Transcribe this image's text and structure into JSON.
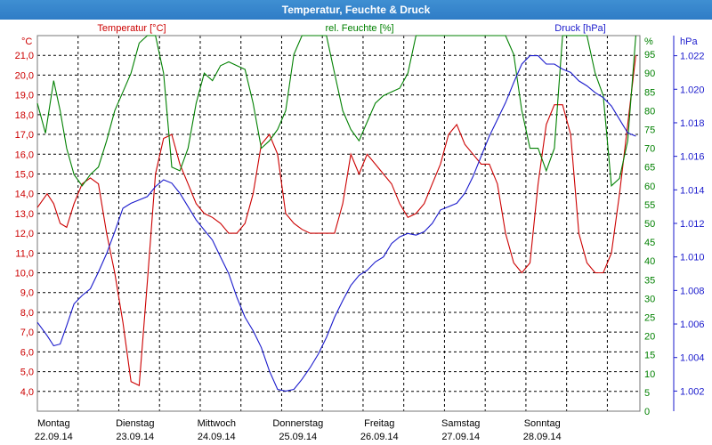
{
  "window": {
    "title": "Temperatur, Feuchte & Druck"
  },
  "chart_data": {
    "type": "line",
    "title": "Temperatur, Feuchte & Druck",
    "x_labels": [
      {
        "day": "Montag",
        "date": "22.09.14"
      },
      {
        "day": "Dienstag",
        "date": "23.09.14"
      },
      {
        "day": "Mittwoch",
        "date": "24.09.14"
      },
      {
        "day": "Donnerstag",
        "date": "25.09.14"
      },
      {
        "day": "Freitag",
        "date": "26.09.14"
      },
      {
        "day": "Samstag",
        "date": "27.09.14"
      },
      {
        "day": "Sonntag",
        "date": "28.09.14"
      }
    ],
    "x_range_days": [
      0,
      7.4
    ],
    "grid": true,
    "axes": {
      "temperature": {
        "label": "Temperatur [°C]",
        "unit": "°C",
        "color": "#cc0000",
        "ylim": [
          3,
          22
        ],
        "ticks": [
          "4,0",
          "5,0",
          "6,0",
          "7,0",
          "8,0",
          "9,0",
          "10,0",
          "11,0",
          "12,0",
          "13,0",
          "14,0",
          "15,0",
          "16,0",
          "17,0",
          "18,0",
          "19,0",
          "20,0",
          "21,0"
        ]
      },
      "humidity": {
        "label": "rel. Feuchte [%]",
        "unit": "%",
        "color": "#008000",
        "ylim": [
          0,
          100
        ],
        "ticks": [
          "0",
          "5",
          "10",
          "15",
          "20",
          "25",
          "30",
          "35",
          "40",
          "45",
          "50",
          "55",
          "60",
          "65",
          "70",
          "75",
          "80",
          "85",
          "90",
          "95"
        ]
      },
      "pressure": {
        "label": "Druck [hPa]",
        "unit": "hPa",
        "color": "#1a1acc",
        "ylim": [
          1000.8,
          1023.2
        ],
        "ticks": [
          "1.002",
          "1.004",
          "1.006",
          "1.008",
          "1.010",
          "1.012",
          "1.014",
          "1.016",
          "1.018",
          "1.020",
          "1.022"
        ]
      }
    },
    "series": [
      {
        "name": "Temperatur [°C]",
        "axis": "temperature",
        "color": "#cc0000",
        "x": [
          0,
          0.12,
          0.2,
          0.28,
          0.36,
          0.45,
          0.55,
          0.65,
          0.75,
          0.85,
          0.95,
          1.05,
          1.15,
          1.25,
          1.35,
          1.45,
          1.55,
          1.65,
          1.75,
          1.85,
          1.95,
          2.05,
          2.15,
          2.25,
          2.35,
          2.45,
          2.55,
          2.65,
          2.75,
          2.85,
          2.95,
          3.05,
          3.15,
          3.25,
          3.35,
          3.45,
          3.55,
          3.65,
          3.75,
          3.85,
          3.95,
          4.05,
          4.15,
          4.25,
          4.35,
          4.45,
          4.55,
          4.65,
          4.75,
          4.85,
          4.95,
          5.05,
          5.15,
          5.25,
          5.35,
          5.45,
          5.55,
          5.65,
          5.75,
          5.85,
          5.95,
          6.05,
          6.15,
          6.25,
          6.35,
          6.45,
          6.55,
          6.65,
          6.75,
          6.85,
          6.95,
          7.05,
          7.15,
          7.25,
          7.35
        ],
        "values": [
          13.3,
          14.0,
          13.5,
          12.5,
          12.3,
          13.5,
          14.5,
          14.8,
          14.5,
          12.0,
          10.0,
          7.5,
          4.5,
          4.3,
          9.5,
          15.0,
          16.8,
          17.0,
          15.5,
          14.5,
          13.5,
          13.0,
          12.8,
          12.5,
          12.0,
          12.0,
          12.5,
          14.0,
          16.5,
          17.0,
          16.0,
          13.0,
          12.5,
          12.2,
          12.0,
          12.0,
          12.0,
          12.0,
          13.5,
          16.0,
          15.0,
          16.0,
          15.5,
          15.0,
          14.5,
          13.5,
          12.8,
          13.0,
          13.5,
          14.5,
          15.5,
          17.0,
          17.5,
          16.5,
          16.0,
          15.5,
          15.5,
          14.5,
          12.0,
          10.5,
          10.0,
          10.5,
          14.5,
          17.5,
          18.5,
          18.5,
          17.0,
          12.0,
          10.5,
          10.0,
          10.0,
          11.0,
          14.0,
          17.5,
          21.0
        ]
      },
      {
        "name": "rel. Feuchte [%]",
        "axis": "humidity",
        "color": "#008000",
        "x": [
          0,
          0.1,
          0.2,
          0.28,
          0.36,
          0.45,
          0.55,
          0.65,
          0.75,
          0.85,
          0.95,
          1.05,
          1.15,
          1.25,
          1.35,
          1.45,
          1.55,
          1.65,
          1.75,
          1.85,
          1.95,
          2.05,
          2.15,
          2.25,
          2.35,
          2.45,
          2.55,
          2.65,
          2.75,
          2.85,
          2.95,
          3.05,
          3.15,
          3.25,
          3.35,
          3.45,
          3.55,
          3.65,
          3.75,
          3.85,
          3.95,
          4.05,
          4.15,
          4.25,
          4.35,
          4.45,
          4.55,
          4.65,
          4.75,
          4.85,
          4.95,
          5.05,
          5.15,
          5.25,
          5.35,
          5.45,
          5.55,
          5.65,
          5.75,
          5.85,
          5.95,
          6.05,
          6.15,
          6.25,
          6.35,
          6.45,
          6.55,
          6.65,
          6.75,
          6.85,
          6.95,
          7.05,
          7.15,
          7.25,
          7.35
        ],
        "values": [
          82,
          74,
          88,
          80,
          70,
          63,
          60,
          63,
          65,
          72,
          80,
          85,
          90,
          98,
          100,
          100,
          90,
          65,
          64,
          70,
          82,
          90,
          88,
          92,
          93,
          92,
          91,
          82,
          70,
          72,
          75,
          80,
          95,
          100,
          100,
          100,
          100,
          90,
          80,
          75,
          72,
          77,
          82,
          84,
          85,
          86,
          90,
          100,
          100,
          100,
          100,
          100,
          100,
          100,
          100,
          100,
          100,
          100,
          100,
          95,
          80,
          70,
          70,
          64,
          70,
          100,
          100,
          100,
          100,
          90,
          84,
          60,
          62,
          72,
          100
        ]
      },
      {
        "name": "Druck [hPa]",
        "axis": "pressure",
        "color": "#1a1acc",
        "x": [
          0,
          0.12,
          0.2,
          0.28,
          0.36,
          0.45,
          0.55,
          0.65,
          0.75,
          0.85,
          0.95,
          1.05,
          1.15,
          1.25,
          1.35,
          1.45,
          1.55,
          1.65,
          1.75,
          1.85,
          1.95,
          2.05,
          2.15,
          2.25,
          2.35,
          2.45,
          2.55,
          2.65,
          2.75,
          2.85,
          2.95,
          3.05,
          3.15,
          3.25,
          3.35,
          3.45,
          3.55,
          3.65,
          3.75,
          3.85,
          3.95,
          4.05,
          4.15,
          4.25,
          4.35,
          4.45,
          4.55,
          4.65,
          4.75,
          4.85,
          4.95,
          5.05,
          5.15,
          5.25,
          5.35,
          5.45,
          5.55,
          5.65,
          5.75,
          5.85,
          5.95,
          6.05,
          6.15,
          6.25,
          6.35,
          6.45,
          6.55,
          6.65,
          6.75,
          6.85,
          6.95,
          7.05,
          7.15,
          7.25,
          7.35
        ],
        "values": [
          1006.1,
          1005.3,
          1004.7,
          1004.8,
          1005.9,
          1007.2,
          1007.7,
          1008.1,
          1009.1,
          1010.2,
          1011.5,
          1012.9,
          1013.2,
          1013.4,
          1013.6,
          1014.2,
          1014.6,
          1014.4,
          1013.8,
          1013.0,
          1012.2,
          1011.6,
          1011.0,
          1010.0,
          1009.0,
          1007.6,
          1006.4,
          1005.6,
          1004.6,
          1003.2,
          1002.1,
          1002.0,
          1002.1,
          1002.7,
          1003.4,
          1004.2,
          1005.2,
          1006.4,
          1007.4,
          1008.3,
          1008.9,
          1009.2,
          1009.7,
          1010.0,
          1010.8,
          1011.2,
          1011.4,
          1011.3,
          1011.5,
          1012.0,
          1012.8,
          1013.0,
          1013.2,
          1013.8,
          1014.8,
          1016.0,
          1017.2,
          1018.2,
          1019.2,
          1020.4,
          1021.5,
          1022.0,
          1022.0,
          1021.5,
          1021.5,
          1021.2,
          1021.0,
          1020.5,
          1020.2,
          1019.8,
          1019.5,
          1019.0,
          1018.2,
          1017.4,
          1017.2
        ]
      }
    ]
  }
}
